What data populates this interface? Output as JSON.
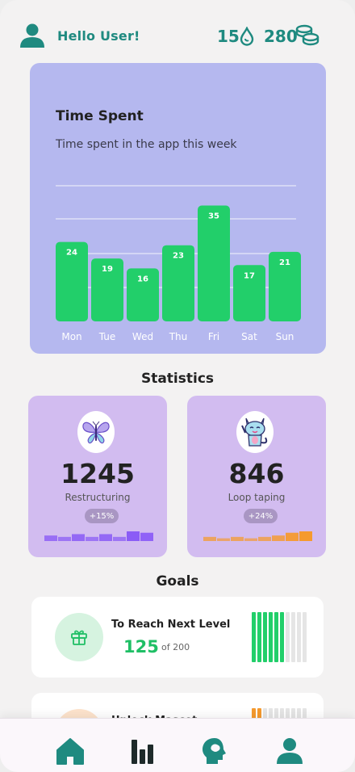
{
  "header": {
    "greeting": "Hello User!",
    "streak_count": "15",
    "coin_count": "280"
  },
  "time_spent": {
    "title": "Time Spent",
    "subtitle": "Time spent in the app this week"
  },
  "chart_data": {
    "type": "bar",
    "title": "Time Spent",
    "subtitle": "Time spent in the app this week",
    "categories": [
      "Mon",
      "Tue",
      "Wed",
      "Thu",
      "Fri",
      "Sat",
      "Sun"
    ],
    "values": [
      24,
      19,
      16,
      23,
      35,
      17,
      21
    ],
    "data_labels": [
      "24",
      "19",
      "16",
      "23",
      "35",
      "17",
      "21"
    ],
    "bar_color": "#22cf6a",
    "grid": true
  },
  "statistics": {
    "title": "Statistics",
    "cards": [
      {
        "value": "1245",
        "label": "Restructuring",
        "change": "+15%",
        "icon": "butterfly-icon",
        "spark_color": "#8b5cf6",
        "spark_values": [
          4,
          3,
          5,
          3,
          5,
          3,
          7,
          6
        ]
      },
      {
        "value": "846",
        "label": "Loop taping",
        "change": "+24%",
        "icon": "cat-icon",
        "spark_color": "#f59a2e",
        "spark_values": [
          3,
          2,
          3,
          2,
          3,
          4,
          6,
          7
        ]
      }
    ]
  },
  "goals": {
    "title": "Goals",
    "items": [
      {
        "title": "To Reach Next Level",
        "current": "125",
        "total_text": "of 200",
        "progress": 0.625,
        "icon": "gift-icon",
        "accent": "#22cf6a"
      },
      {
        "title": "Unlock Mascot",
        "progress": 0.15,
        "icon": "mascot-icon",
        "accent": "#f59a2e"
      }
    ]
  },
  "nav": {
    "items": [
      "home-icon",
      "stats-icon",
      "mind-icon",
      "profile-icon"
    ],
    "color": "#1f8a80"
  }
}
